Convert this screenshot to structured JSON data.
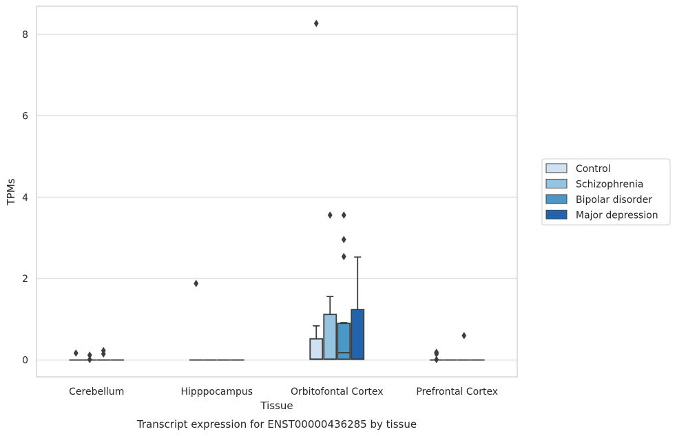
{
  "chart_data": {
    "type": "box",
    "title": "",
    "caption": "Transcript expression for ENST00000436285 by tissue",
    "xlabel": "Tissue",
    "ylabel": "TPMs",
    "ylim": [
      -0.4,
      8.7
    ],
    "yticks": [
      0,
      2,
      4,
      6,
      8
    ],
    "grid": "horizontal",
    "legend_position": "right-outside",
    "categories": [
      "Cerebellum",
      "Hipppocampus",
      "Orbitofontal Cortex",
      "Prefrontal Cortex"
    ],
    "series": [
      {
        "name": "Control",
        "color": "#d0e1f2",
        "boxes": [
          {
            "q1": 0,
            "median": 0,
            "q3": 0,
            "whisker_low": 0,
            "whisker_high": 0,
            "outliers": [
              0.17
            ]
          },
          {
            "q1": 0,
            "median": 0,
            "q3": 0,
            "whisker_low": 0,
            "whisker_high": 0,
            "outliers": [
              1.88
            ]
          },
          {
            "q1": 0.02,
            "median": 0.02,
            "q3": 0.52,
            "whisker_low": 0,
            "whisker_high": 0.84,
            "outliers": [
              8.27
            ]
          },
          {
            "q1": 0,
            "median": 0,
            "q3": 0,
            "whisker_low": 0,
            "whisker_high": 0,
            "outliers": [
              0.19,
              0.15,
              0.01
            ]
          }
        ]
      },
      {
        "name": "Schizophrenia",
        "color": "#94c4df",
        "boxes": [
          {
            "q1": 0,
            "median": 0,
            "q3": 0,
            "whisker_low": 0,
            "whisker_high": 0,
            "outliers": [
              0.12,
              0.01
            ]
          },
          {
            "q1": 0,
            "median": 0,
            "q3": 0,
            "whisker_low": 0,
            "whisker_high": 0,
            "outliers": []
          },
          {
            "q1": 0.02,
            "median": 0.02,
            "q3": 1.12,
            "whisker_low": 0,
            "whisker_high": 1.56,
            "outliers": [
              3.56
            ]
          },
          {
            "q1": 0,
            "median": 0,
            "q3": 0,
            "whisker_low": 0,
            "whisker_high": 0,
            "outliers": []
          }
        ]
      },
      {
        "name": "Bipolar disorder",
        "color": "#4a98c9",
        "boxes": [
          {
            "q1": 0,
            "median": 0,
            "q3": 0,
            "whisker_low": 0,
            "whisker_high": 0,
            "outliers": [
              0.23,
              0.15
            ]
          },
          {
            "q1": 0,
            "median": 0,
            "q3": 0,
            "whisker_low": 0,
            "whisker_high": 0,
            "outliers": []
          },
          {
            "q1": 0.02,
            "median": 0.18,
            "q3": 0.9,
            "whisker_low": 0,
            "whisker_high": 0.92,
            "outliers": [
              3.56,
              2.96,
              2.54
            ]
          },
          {
            "q1": 0,
            "median": 0,
            "q3": 0,
            "whisker_low": 0,
            "whisker_high": 0,
            "outliers": [
              0.6
            ]
          }
        ]
      },
      {
        "name": "Major depression",
        "color": "#2164ab",
        "boxes": [
          {
            "q1": 0,
            "median": 0,
            "q3": 0,
            "whisker_low": 0,
            "whisker_high": 0,
            "outliers": []
          },
          {
            "q1": 0,
            "median": 0,
            "q3": 0,
            "whisker_low": 0,
            "whisker_high": 0,
            "outliers": []
          },
          {
            "q1": 0.02,
            "median": 0.02,
            "q3": 1.24,
            "whisker_low": 0,
            "whisker_high": 2.53,
            "outliers": []
          },
          {
            "q1": 0,
            "median": 0,
            "q3": 0,
            "whisker_low": 0,
            "whisker_high": 0,
            "outliers": []
          }
        ]
      }
    ]
  }
}
